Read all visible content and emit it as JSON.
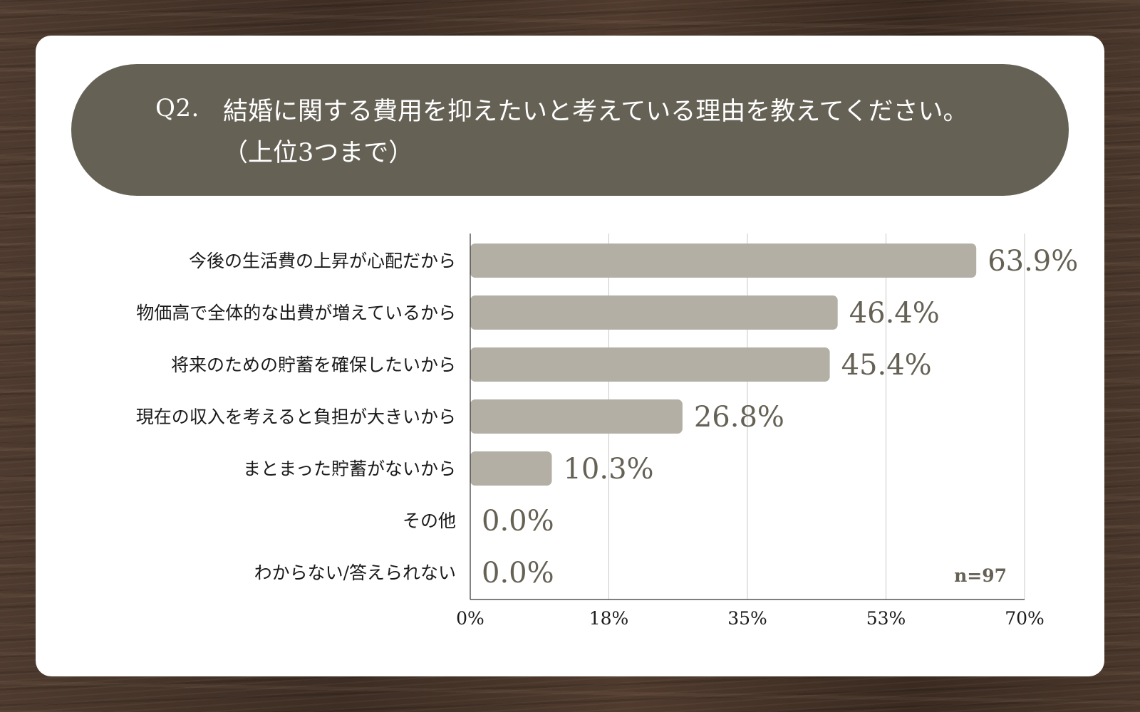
{
  "question": {
    "number": "Q2.",
    "line1": "結婚に関する費用を抑えたいと考えている理由を教えてください。",
    "line2": "（上位3つまで）"
  },
  "colors": {
    "bar": "#b3afa4",
    "header": "#656155",
    "value_text": "#656155",
    "grid": "#c8c8c8",
    "axis": "#333333"
  },
  "chart_data": {
    "type": "bar",
    "orientation": "horizontal",
    "categories": [
      "今後の生活費の上昇が心配だから",
      "物価高で全体的な出費が増えているから",
      "将来のための貯蓄を確保したいから",
      "現在の収入を考えると負担が大きいから",
      "まとまった貯蓄がないから",
      "その他",
      "わからない/答えられない"
    ],
    "values": [
      63.9,
      46.4,
      45.4,
      26.8,
      10.3,
      0.0,
      0.0
    ],
    "value_labels": [
      "63.9%",
      "46.4%",
      "45.4%",
      "26.8%",
      "10.3%",
      "0.0%",
      "0.0%"
    ],
    "xlim": [
      0,
      70
    ],
    "ticks": [
      0,
      17.5,
      35,
      52.5,
      70
    ],
    "tick_labels": [
      "0%",
      "18%",
      "35%",
      "53%",
      "70%"
    ],
    "grid": true,
    "note": "n=97"
  }
}
